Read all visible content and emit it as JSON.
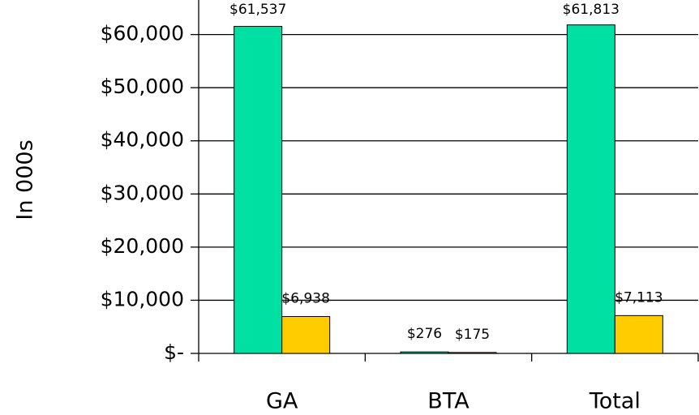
{
  "chart_data": {
    "type": "bar",
    "y_label": "In 000s",
    "categories": [
      "GA",
      "BTA",
      "Total"
    ],
    "series": [
      {
        "color": "#00e0a3",
        "values": [
          61537,
          276,
          61813
        ],
        "value_labels": [
          "$61,537",
          "$276",
          "$61,813"
        ]
      },
      {
        "color": "#ffcc00",
        "values": [
          6938,
          175,
          7113
        ],
        "value_labels": [
          "$6,938",
          "$175",
          "$7,113"
        ]
      }
    ],
    "ylim": [
      0,
      66500
    ],
    "yticks": [
      {
        "value": 0,
        "label": "$-"
      },
      {
        "value": 10000,
        "label": "$10,000"
      },
      {
        "value": 20000,
        "label": "$20,000"
      },
      {
        "value": 30000,
        "label": "$30,000"
      },
      {
        "value": 40000,
        "label": "$40,000"
      },
      {
        "value": 50000,
        "label": "$50,000"
      },
      {
        "value": 60000,
        "label": "$60,000"
      }
    ],
    "grid": true
  }
}
